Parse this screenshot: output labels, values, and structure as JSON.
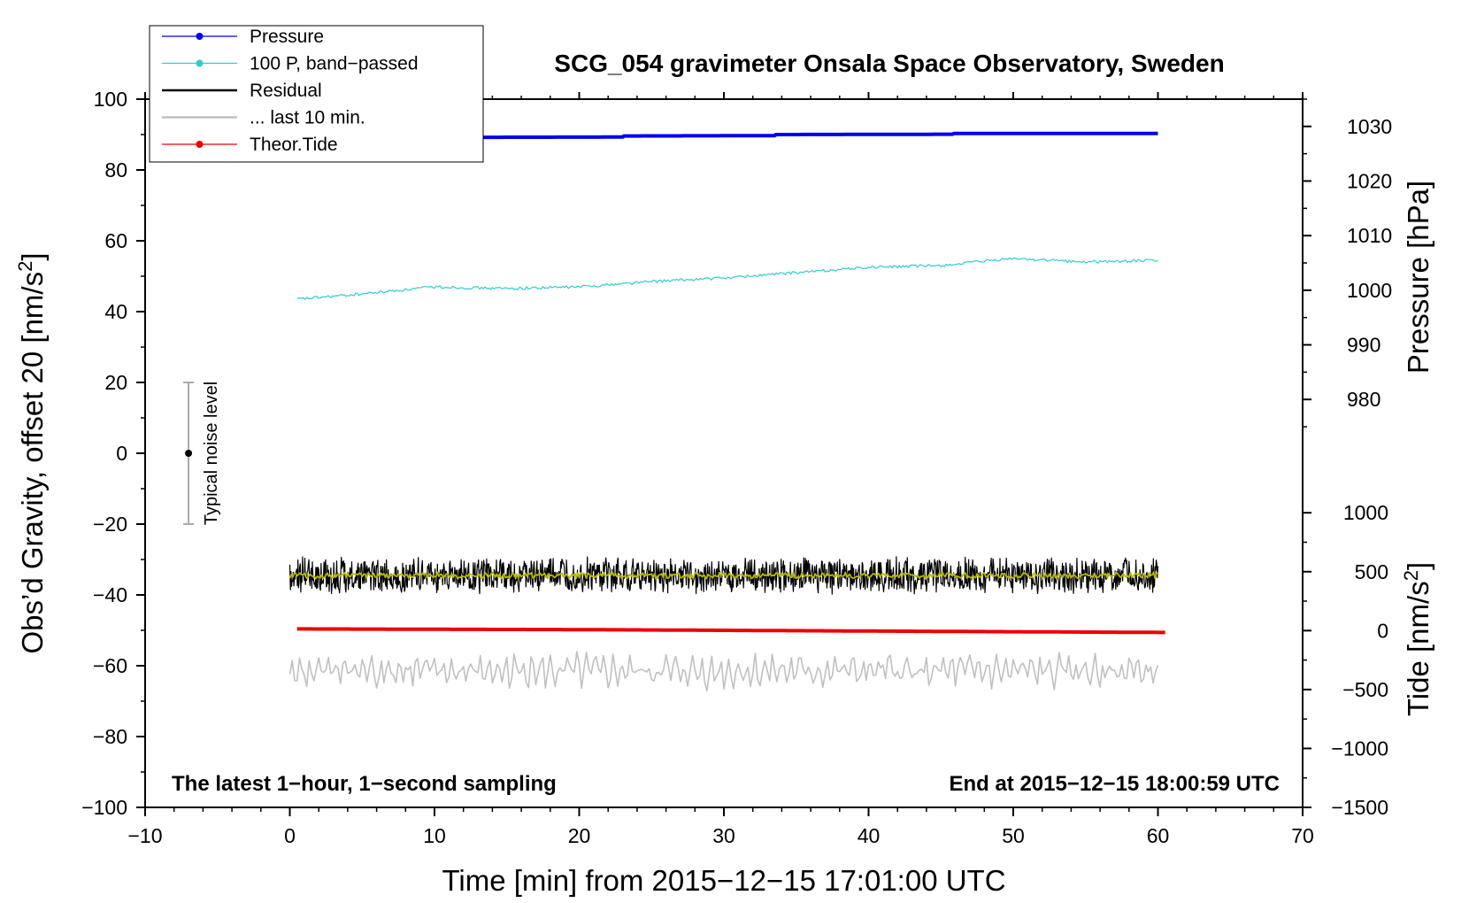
{
  "chart_data": {
    "type": "line",
    "title": "SCG_054 gravimeter Onsala Space Observatory, Sweden",
    "xlabel": "Time [min] from 2015−12−15 17:01:00 UTC",
    "ylabel": "Obs’d Gravity, offset 20 [nm/s",
    "ylabel_sup": "2",
    "ylabel_tail": "]",
    "y2_pressure_label": "Pressure [hPa]",
    "y2_tide_label": "Tide [nm/s",
    "y2_tide_sup": "2",
    "y2_tide_tail": "]",
    "xlim": [
      -10,
      70
    ],
    "ylim": [
      -100,
      100
    ],
    "x_ticks": [
      -10,
      0,
      10,
      20,
      30,
      40,
      50,
      60,
      70
    ],
    "x_tick_labels": [
      "−10",
      "0",
      "10",
      "20",
      "30",
      "40",
      "50",
      "60",
      "70"
    ],
    "y_ticks": [
      -100,
      -80,
      -60,
      -40,
      -20,
      0,
      20,
      40,
      60,
      80,
      100
    ],
    "y_tick_labels": [
      "−100",
      "−80",
      "−60",
      "−40",
      "−20",
      "0",
      "20",
      "40",
      "60",
      "80",
      "100"
    ],
    "pressure_axis": {
      "ticks": [
        980,
        990,
        1000,
        1010,
        1020,
        1030
      ],
      "tick_labels": [
        "980",
        "990",
        "1000",
        "1010",
        "1020",
        "1030"
      ],
      "map": {
        "value_a": 980,
        "gravity_a": 15.2,
        "value_b": 1030,
        "gravity_b": 92.3
      }
    },
    "tide_axis": {
      "ticks": [
        -1500,
        -1000,
        -500,
        0,
        500,
        1000
      ],
      "tick_labels": [
        "−1500",
        "−1000",
        "−500",
        "0",
        "500",
        "1000"
      ],
      "map": {
        "value_a": -1500,
        "gravity_a": -100,
        "value_b": 1000,
        "gravity_b": -16.8
      }
    },
    "legend": [
      {
        "label": "Pressure",
        "color": "#0000ee",
        "marker": true
      },
      {
        "label": "100 P, band−passed",
        "color": "#33cccc",
        "marker": true
      },
      {
        "label": "Residual",
        "color": "#000000",
        "marker": false
      },
      {
        "label": "... last 10 min.",
        "color": "#c0c0c0",
        "marker": false
      },
      {
        "label": "Theor.Tide",
        "color": "#ee0000",
        "marker": true
      }
    ],
    "series": [
      {
        "name": "Pressure",
        "color": "#0000ee",
        "x": [
          0,
          10,
          23,
          23.1,
          33.5,
          33.6,
          45.8,
          45.9,
          60
        ],
        "y": [
          89.0,
          89.2,
          89.3,
          89.6,
          89.7,
          90.0,
          90.1,
          90.3,
          90.3
        ]
      },
      {
        "name": "100 P, band−passed",
        "color": "#33cccc",
        "x": [
          0.5,
          5,
          10,
          15,
          20,
          25,
          30,
          35,
          40,
          45,
          50,
          55,
          60
        ],
        "y": [
          43.5,
          45,
          47,
          46.5,
          47,
          48.5,
          49.5,
          51,
          52.5,
          53,
          55,
          54,
          54.5
        ]
      },
      {
        "name": "Residual",
        "color": "#000000",
        "x_range": [
          0,
          60
        ],
        "center": -34.5,
        "amplitude": 5.5
      },
      {
        "name": "Residual smoothed",
        "color": "#b8b800",
        "x_range": [
          0,
          60
        ],
        "center": -34.5,
        "amplitude": 1.0
      },
      {
        "name": "... last 10 min.",
        "color": "#c0c0c0",
        "x_range": [
          0,
          60
        ],
        "center": -61.5,
        "amplitude": 5.5
      },
      {
        "name": "Theor.Tide",
        "color": "#ee0000",
        "x": [
          0.5,
          10,
          20,
          30,
          40,
          50,
          60.5
        ],
        "y": [
          -49.6,
          -49.7,
          -49.8,
          -50.0,
          -50.2,
          -50.4,
          -50.6
        ]
      }
    ],
    "noise_bar": {
      "x": -7,
      "y": 0,
      "low": -20,
      "high": 20,
      "label": "Typical noise level"
    },
    "annotations": {
      "left": "The latest 1−hour, 1−second sampling",
      "right": "End at 2015−12−15 18:00:59 UTC"
    }
  }
}
